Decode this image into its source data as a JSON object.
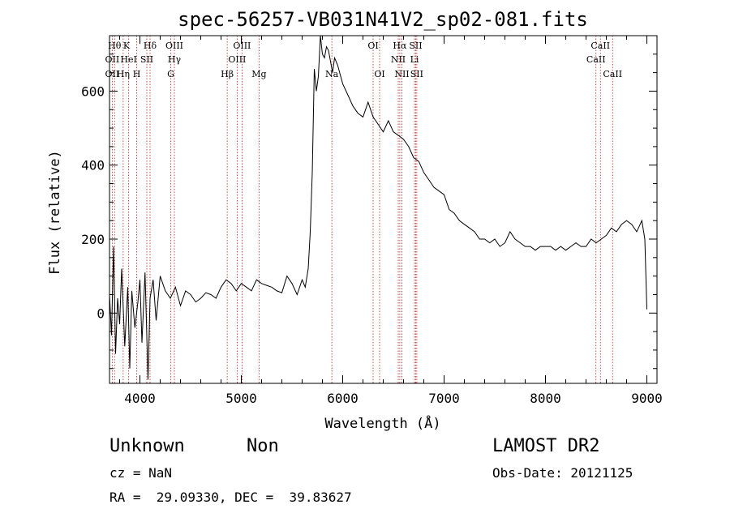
{
  "chart_data": {
    "type": "line",
    "title": "spec-56257-VB031N41V2_sp02-081.fits",
    "xlabel": "Wavelength (Å)",
    "ylabel": "Flux (relative)",
    "xlim": [
      3700,
      9100
    ],
    "ylim": [
      -190,
      750
    ],
    "xticks": [
      4000,
      5000,
      6000,
      7000,
      8000,
      9000
    ],
    "xtick_labels": [
      "4000",
      "5000",
      "6000",
      "7000",
      "8000",
      "9000"
    ],
    "yticks": [
      0,
      200,
      400,
      600
    ],
    "ytick_labels": [
      "0",
      "200",
      "400",
      "600"
    ],
    "series": [
      {
        "name": "spectrum",
        "x": [
          3700,
          3720,
          3740,
          3760,
          3780,
          3800,
          3820,
          3850,
          3880,
          3900,
          3920,
          3950,
          3980,
          4000,
          4020,
          4050,
          4080,
          4100,
          4130,
          4160,
          4200,
          4250,
          4300,
          4350,
          4400,
          4450,
          4500,
          4550,
          4600,
          4650,
          4700,
          4750,
          4800,
          4850,
          4900,
          4950,
          5000,
          5050,
          5100,
          5150,
          5200,
          5250,
          5300,
          5350,
          5400,
          5450,
          5500,
          5550,
          5600,
          5630,
          5660,
          5680,
          5700,
          5720,
          5740,
          5760,
          5780,
          5800,
          5820,
          5840,
          5860,
          5880,
          5900,
          5920,
          5950,
          6000,
          6050,
          6100,
          6150,
          6200,
          6250,
          6300,
          6350,
          6400,
          6450,
          6500,
          6550,
          6600,
          6650,
          6700,
          6750,
          6800,
          6850,
          6900,
          6950,
          7000,
          7050,
          7100,
          7150,
          7200,
          7250,
          7300,
          7350,
          7400,
          7450,
          7500,
          7550,
          7600,
          7650,
          7700,
          7750,
          7800,
          7850,
          7900,
          7950,
          8000,
          8050,
          8100,
          8150,
          8200,
          8250,
          8300,
          8350,
          8400,
          8450,
          8500,
          8550,
          8600,
          8650,
          8700,
          8750,
          8800,
          8850,
          8900,
          8950,
          8980,
          9000
        ],
        "y": [
          50,
          -60,
          180,
          -110,
          40,
          -30,
          120,
          -90,
          70,
          -150,
          60,
          -40,
          30,
          90,
          -80,
          110,
          -180,
          40,
          90,
          -20,
          100,
          60,
          40,
          70,
          20,
          60,
          50,
          30,
          40,
          55,
          50,
          40,
          70,
          90,
          80,
          60,
          80,
          70,
          60,
          90,
          80,
          75,
          70,
          60,
          55,
          100,
          80,
          50,
          90,
          70,
          120,
          220,
          380,
          660,
          600,
          640,
          750,
          700,
          690,
          720,
          710,
          680,
          650,
          690,
          670,
          620,
          590,
          560,
          540,
          530,
          570,
          530,
          510,
          490,
          520,
          490,
          480,
          470,
          450,
          420,
          410,
          380,
          360,
          340,
          330,
          320,
          280,
          270,
          250,
          240,
          230,
          220,
          200,
          200,
          190,
          200,
          180,
          190,
          220,
          200,
          190,
          180,
          180,
          170,
          180,
          180,
          180,
          170,
          180,
          170,
          180,
          190,
          180,
          180,
          200,
          190,
          200,
          210,
          230,
          220,
          240,
          250,
          240,
          220,
          250,
          200,
          10
        ]
      }
    ],
    "lines": [
      {
        "wl": 3750,
        "label": "Hθ",
        "row": 1,
        "ha": "center"
      },
      {
        "wl": 3835,
        "label": "K",
        "row": 1,
        "ha": "left"
      },
      {
        "wl": 4100,
        "label": "Hδ",
        "row": 1,
        "ha": "center"
      },
      {
        "wl": 4340,
        "label": "OIII",
        "row": 1,
        "ha": "center"
      },
      {
        "wl": 5007,
        "label": "OIII",
        "row": 1,
        "ha": "center"
      },
      {
        "wl": 6300,
        "label": "OI",
        "row": 1,
        "ha": "center"
      },
      {
        "wl": 6563,
        "label": "Hα",
        "row": 1,
        "ha": "center"
      },
      {
        "wl": 6720,
        "label": "SII",
        "row": 1,
        "ha": "center"
      },
      {
        "wl": 8542,
        "label": "CaII",
        "row": 1,
        "ha": "center"
      },
      {
        "wl": 3727,
        "label": "OII",
        "row": 2,
        "ha": "center"
      },
      {
        "wl": 3889,
        "label": "HeI",
        "row": 2,
        "ha": "center"
      },
      {
        "wl": 4068,
        "label": "SII",
        "row": 2,
        "ha": "center"
      },
      {
        "wl": 4340,
        "label": "Hγ",
        "row": 2,
        "ha": "center"
      },
      {
        "wl": 4959,
        "label": "OIII",
        "row": 2,
        "ha": "center"
      },
      {
        "wl": 6548,
        "label": "NII",
        "row": 2,
        "ha": "center"
      },
      {
        "wl": 6708,
        "label": "Li",
        "row": 2,
        "ha": "center"
      },
      {
        "wl": 8498,
        "label": "CaII",
        "row": 2,
        "ha": "center"
      },
      {
        "wl": 3727,
        "label": "OII",
        "row": 3,
        "ha": "center"
      },
      {
        "wl": 3835,
        "label": "Hη",
        "row": 3,
        "ha": "center"
      },
      {
        "wl": 3968,
        "label": "H",
        "row": 3,
        "ha": "center"
      },
      {
        "wl": 4304,
        "label": "G",
        "row": 3,
        "ha": "center"
      },
      {
        "wl": 4861,
        "label": "Hβ",
        "row": 3,
        "ha": "center"
      },
      {
        "wl": 5175,
        "label": "Mg",
        "row": 3,
        "ha": "center"
      },
      {
        "wl": 5893,
        "label": "Na",
        "row": 3,
        "ha": "center"
      },
      {
        "wl": 6364,
        "label": "OI",
        "row": 3,
        "ha": "center"
      },
      {
        "wl": 6584,
        "label": "NII",
        "row": 3,
        "ha": "center"
      },
      {
        "wl": 6731,
        "label": "SII",
        "row": 3,
        "ha": "center"
      },
      {
        "wl": 8662,
        "label": "CaII",
        "row": 3,
        "ha": "center"
      }
    ]
  },
  "info": {
    "object_class": "Unknown",
    "object_subclass": "Non",
    "survey": "LAMOST DR2",
    "cz": "cz = NaN",
    "obs_date": "Obs-Date: 20121125",
    "coords": "RA =  29.09330, DEC =  39.83627"
  }
}
